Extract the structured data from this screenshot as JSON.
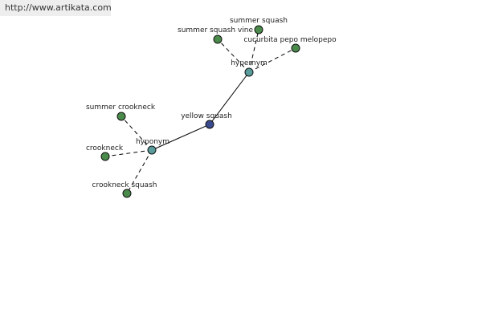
{
  "header": {
    "url": "http://www.artikata.com"
  },
  "nodes": [
    {
      "label": "yellow squash"
    },
    {
      "label": "hypernym"
    },
    {
      "label": "hyponym"
    },
    {
      "label": "summer squash"
    },
    {
      "label": "summer squash vine"
    },
    {
      "label": "cucurbita pepo melopepo"
    },
    {
      "label": "summer crookneck"
    },
    {
      "label": "crookneck"
    },
    {
      "label": "crookneck squash"
    }
  ]
}
